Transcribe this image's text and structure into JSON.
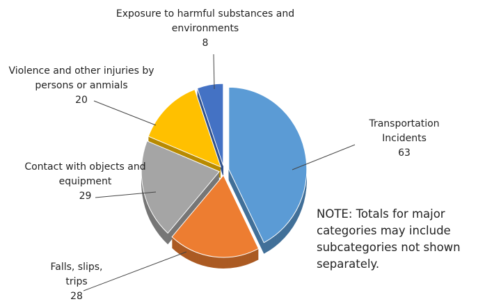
{
  "chart_data": {
    "type": "pie",
    "categories": [
      "Transportation Incidents",
      "Falls, slips, trips",
      "Contact with objects and equipment",
      "Violence and other injuries by persons or anmials",
      "Exposure to harmful substances and environments"
    ],
    "values": [
      63,
      28,
      29,
      20,
      8
    ],
    "colors": [
      "#5b9bd5",
      "#ed7d31",
      "#a5a5a5",
      "#ffc000",
      "#4472c4"
    ],
    "note": "NOTE: Totals for major categories may include subcategories not shown separately."
  }
}
